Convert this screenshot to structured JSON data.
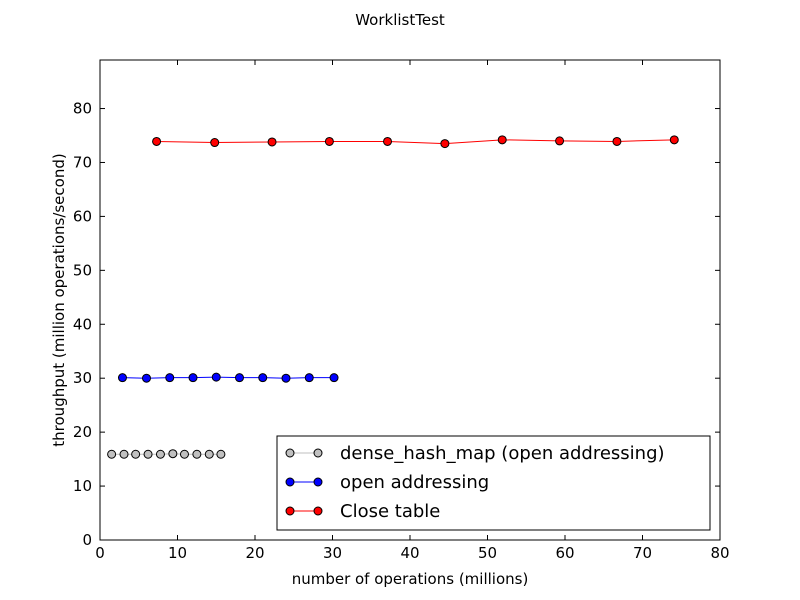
{
  "chart_data": {
    "type": "line",
    "title": "WorklistTest",
    "xlabel": "number of operations (millions)",
    "ylabel": "throughput (million operations/second)",
    "xlim": [
      0,
      80
    ],
    "ylim": [
      0,
      89
    ],
    "xticks": [
      0,
      10,
      20,
      30,
      40,
      50,
      60,
      70,
      80
    ],
    "yticks": [
      0,
      10,
      20,
      30,
      40,
      50,
      60,
      70,
      80
    ],
    "grid": false,
    "legend_position": "lower-right",
    "series": [
      {
        "name": "dense_hash_map (open addressing)",
        "color": "#c0c0c0",
        "line_color": "#bfbfbf",
        "x": [
          1.5,
          3.1,
          4.6,
          6.2,
          7.8,
          9.4,
          10.9,
          12.5,
          14.1,
          15.6
        ],
        "y": [
          15.9,
          15.9,
          15.9,
          15.9,
          15.9,
          16.0,
          15.9,
          15.9,
          15.9,
          15.9
        ]
      },
      {
        "name": "open addressing",
        "color": "#0000ff",
        "line_color": "#0000ff",
        "x": [
          2.9,
          6.0,
          9.0,
          12.0,
          15.0,
          18.0,
          21.0,
          24.0,
          27.0,
          30.2
        ],
        "y": [
          30.1,
          30.0,
          30.1,
          30.1,
          30.2,
          30.1,
          30.1,
          30.0,
          30.1,
          30.1
        ]
      },
      {
        "name": "Close table",
        "color": "#ff0000",
        "line_color": "#ff0000",
        "x": [
          7.3,
          14.8,
          22.2,
          29.6,
          37.1,
          44.5,
          51.9,
          59.3,
          66.7,
          74.1
        ],
        "y": [
          73.9,
          73.7,
          73.8,
          73.9,
          73.9,
          73.5,
          74.2,
          74.0,
          73.9,
          74.2
        ]
      }
    ]
  }
}
